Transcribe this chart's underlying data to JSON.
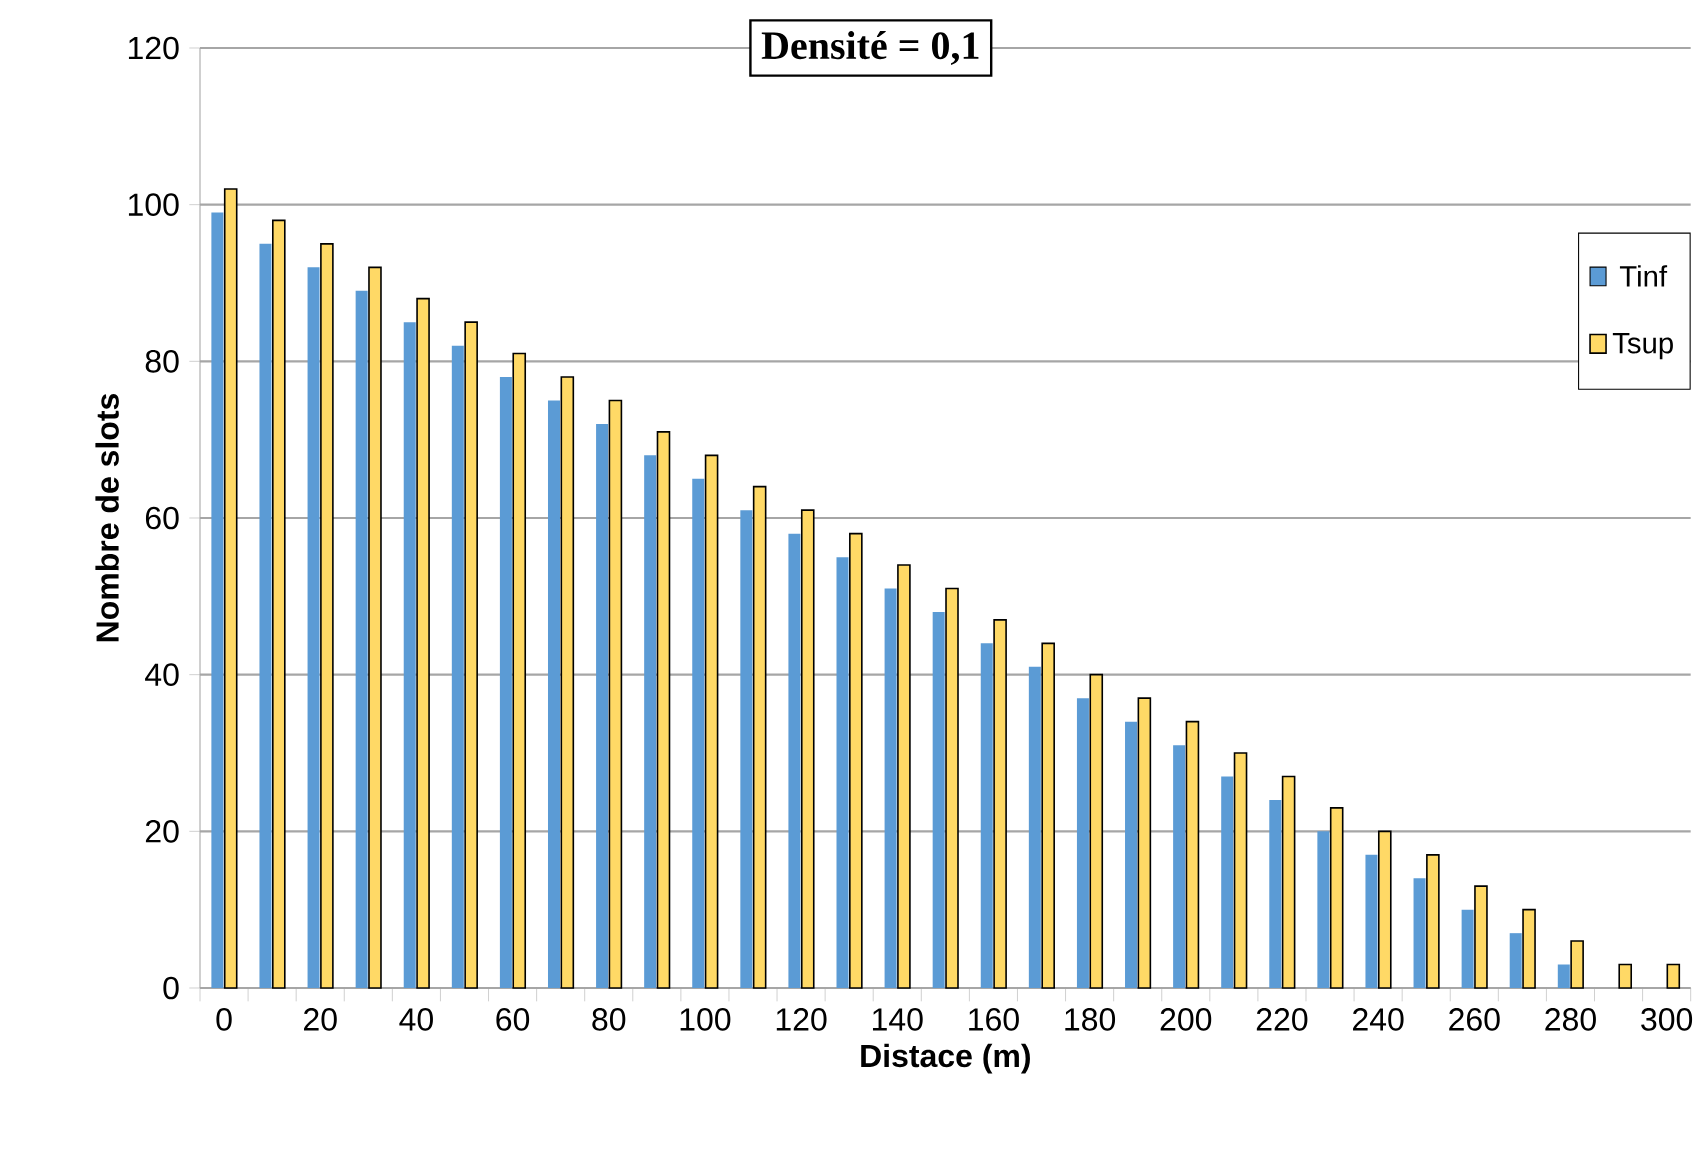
{
  "chart_data": {
    "type": "bar",
    "title": "Densité = 0,1",
    "xlabel": "Distace (m)",
    "ylabel": "Nombre de slots",
    "categories": [
      "0",
      null,
      "20",
      null,
      "40",
      null,
      "60",
      null,
      "80",
      null,
      "100",
      null,
      "120",
      null,
      "140",
      null,
      "160",
      null,
      "180",
      null,
      "200",
      null,
      "220",
      null,
      "240",
      null,
      "260",
      null,
      "280",
      null,
      "300"
    ],
    "series": [
      {
        "name": "Tinf",
        "color": "#5b9bd5",
        "values": [
          99,
          95,
          92,
          89,
          85,
          82,
          78,
          75,
          72,
          68,
          65,
          61,
          58,
          55,
          51,
          48,
          44,
          41,
          37,
          34,
          31,
          27,
          24,
          20,
          17,
          14,
          10,
          7,
          3,
          0,
          0
        ]
      },
      {
        "name": "Tsup",
        "color": "#ffd966",
        "values": [
          102,
          98,
          95,
          92,
          88,
          85,
          81,
          78,
          75,
          71,
          68,
          64,
          61,
          58,
          54,
          51,
          47,
          44,
          40,
          37,
          34,
          30,
          27,
          23,
          20,
          17,
          13,
          10,
          6,
          3,
          3
        ]
      }
    ],
    "ylim": [
      0,
      120
    ],
    "yticks": [
      0,
      20,
      40,
      60,
      80,
      100,
      120
    ],
    "grid": "y",
    "legend": "right"
  }
}
